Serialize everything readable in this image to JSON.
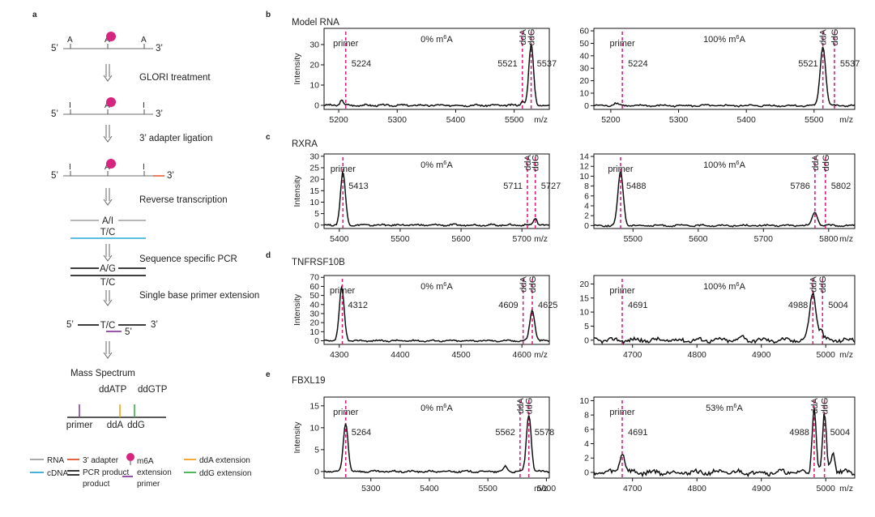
{
  "colors": {
    "accent": "#d6257e",
    "rna": "#9e9e9e",
    "cdna": "#2aa7d6",
    "adapter": "#e5532a",
    "primer_ext": "#8a3fa0",
    "dda": "#f0a21a",
    "ddg": "#3fae49",
    "trace": "#111111"
  },
  "workflow": {
    "label": "a",
    "three": "3’",
    "five": "5’",
    "base_A": "A",
    "base_I": "I",
    "steps": [
      "GLORI treatment",
      "3’ adapter ligation",
      "Reverse transcription",
      "Sequence specific PCR",
      "Single base primer extension",
      "Mass Spectrum"
    ],
    "duplex_rt": {
      "top": "A/I",
      "bottom": "T/C"
    },
    "duplex_pcr": {
      "top": "A/G",
      "bottom": "T/C"
    },
    "ext": {
      "template": "T/C",
      "five": "5’"
    },
    "ms_top_labels": [
      "ddATP",
      "ddGTP"
    ],
    "ms_bottom_labels": [
      "primer",
      "ddA",
      "ddG"
    ]
  },
  "legend": [
    {
      "name": "rna",
      "label": "RNA"
    },
    {
      "name": "cdna",
      "label": "cDNA"
    },
    {
      "name": "adapter",
      "label": "3’ adapter"
    },
    {
      "name": "pcr",
      "label": "PCR product",
      "label2": "product"
    },
    {
      "name": "m6a",
      "label": "m6A"
    },
    {
      "name": "primer",
      "label": "extension",
      "label2": "primer"
    },
    {
      "name": "dda",
      "label": "ddA extension"
    },
    {
      "name": "ddg",
      "label": "ddG extension"
    }
  ],
  "rows": [
    {
      "letter": "b",
      "gene": "Model RNA",
      "left_ylabel": "Intensity",
      "xlabel": "m/z"
    },
    {
      "letter": "c",
      "gene": "RXRA",
      "left_ylabel": "Intensity",
      "xlabel": "m/z"
    },
    {
      "letter": "d",
      "gene": "TNFRSF10B",
      "left_ylabel": "Intensity",
      "xlabel": "m/z"
    },
    {
      "letter": "e",
      "gene": "FBXL19",
      "left_ylabel": "Intensity",
      "xlabel": "m/z"
    }
  ],
  "chart_data": [
    {
      "type": "line",
      "id": "b0",
      "title": "0% m6A",
      "title_parts": [
        "0% m",
        "6",
        "A"
      ],
      "xlim": [
        5175,
        5560
      ],
      "xticks": [
        5200,
        5300,
        5400,
        5500
      ],
      "ylim": [
        -2,
        38
      ],
      "yticks": [
        0,
        10,
        20,
        30
      ],
      "peak_labels": {
        "primer": "primer",
        "ddA": "ddA",
        "ddG": "ddG"
      },
      "markers": [
        {
          "x": 5212,
          "role": "primer",
          "mass": "5224"
        },
        {
          "x": 5514,
          "role": "ddA",
          "mass": "5521"
        },
        {
          "x": 5529,
          "role": "ddG",
          "mass": "5537"
        }
      ],
      "peaks": [
        {
          "x": 5205,
          "h": 2.5,
          "w": 3
        },
        {
          "x": 5529,
          "h": 30,
          "w": 4
        },
        {
          "x": 5514,
          "h": 2,
          "w": 3
        }
      ]
    },
    {
      "type": "line",
      "id": "b1",
      "title": "100% m6A",
      "title_parts": [
        "100% m",
        "6",
        "A"
      ],
      "xlim": [
        5175,
        5560
      ],
      "xticks": [
        5200,
        5300,
        5400,
        5500
      ],
      "ylim": [
        -3,
        62
      ],
      "yticks": [
        0,
        10,
        20,
        30,
        40,
        50,
        60
      ],
      "peak_labels": {
        "primer": "primer",
        "ddA": "ddA",
        "ddG": "ddG"
      },
      "markers": [
        {
          "x": 5217,
          "role": "primer",
          "mass": "5224"
        },
        {
          "x": 5513,
          "role": "ddA",
          "mass": "5521"
        },
        {
          "x": 5530,
          "role": "ddG",
          "mass": "5537"
        }
      ],
      "peaks": [
        {
          "x": 5207,
          "h": 2,
          "w": 4
        },
        {
          "x": 5513,
          "h": 48,
          "w": 4
        }
      ]
    },
    {
      "type": "line",
      "id": "c0",
      "title": "0% m6A",
      "title_parts": [
        "0% m",
        "6",
        "A"
      ],
      "xlim": [
        5375,
        5745
      ],
      "xticks": [
        5400,
        5500,
        5600,
        5700
      ],
      "ylim": [
        -1.5,
        31
      ],
      "yticks": [
        0,
        5,
        10,
        15,
        20,
        25,
        30
      ],
      "peak_labels": {
        "primer": "primer",
        "ddA": "ddA",
        "ddG": "ddG"
      },
      "markers": [
        {
          "x": 5406,
          "role": "primer",
          "mass": "5413"
        },
        {
          "x": 5709,
          "role": "ddA",
          "mass": "5711"
        },
        {
          "x": 5722,
          "role": "ddG",
          "mass": "5727"
        }
      ],
      "peaks": [
        {
          "x": 5406,
          "h": 23,
          "w": 4
        },
        {
          "x": 5722,
          "h": 3,
          "w": 3
        }
      ]
    },
    {
      "type": "line",
      "id": "c1",
      "title": "100% m6A",
      "title_parts": [
        "100% m",
        "6",
        "A"
      ],
      "xlim": [
        5440,
        5840
      ],
      "xticks": [
        5500,
        5600,
        5700,
        5800
      ],
      "ylim": [
        -0.6,
        14.5
      ],
      "yticks": [
        0,
        2,
        4,
        6,
        8,
        10,
        12,
        14
      ],
      "peak_labels": {
        "primer": "primer",
        "ddA": "ddA",
        "ddG": "ddG"
      },
      "markers": [
        {
          "x": 5481,
          "role": "primer",
          "mass": "5488"
        },
        {
          "x": 5779,
          "role": "ddA",
          "mass": "5786"
        },
        {
          "x": 5795,
          "role": "ddG",
          "mass": "5802"
        }
      ],
      "peaks": [
        {
          "x": 5481,
          "h": 11,
          "w": 4
        },
        {
          "x": 5779,
          "h": 2.7,
          "w": 4
        }
      ]
    },
    {
      "type": "line",
      "id": "d0",
      "title": "0% m6A",
      "title_parts": [
        "0% m",
        "6",
        "A"
      ],
      "xlim": [
        4275,
        4645
      ],
      "xticks": [
        4300,
        4400,
        4500,
        4600
      ],
      "ylim": [
        -4,
        72
      ],
      "yticks": [
        0,
        10,
        20,
        30,
        40,
        50,
        60,
        70
      ],
      "peak_labels": {
        "primer": "primer",
        "ddA": "ddA",
        "ddG": "ddG"
      },
      "markers": [
        {
          "x": 4305,
          "role": "primer",
          "mass": "4312"
        },
        {
          "x": 4602,
          "role": "ddA",
          "mass": "4609"
        },
        {
          "x": 4617,
          "role": "ddG",
          "mass": "4625"
        }
      ],
      "peaks": [
        {
          "x": 4304,
          "h": 58,
          "w": 4
        },
        {
          "x": 4617,
          "h": 34,
          "w": 4
        }
      ]
    },
    {
      "type": "line",
      "id": "d1",
      "title": "100% m6A",
      "title_parts": [
        "100% m",
        "6",
        "A"
      ],
      "xlim": [
        4640,
        5045
      ],
      "xticks": [
        4700,
        4800,
        4900,
        5000
      ],
      "ylim": [
        -1.5,
        23
      ],
      "yticks": [
        0,
        5,
        10,
        15,
        20
      ],
      "peak_labels": {
        "primer": "primer",
        "ddA": "ddA",
        "ddG": "ddG"
      },
      "markers": [
        {
          "x": 4684,
          "role": "primer",
          "mass": "4691"
        },
        {
          "x": 4980,
          "role": "ddA",
          "mass": "4988"
        },
        {
          "x": 4995,
          "role": "ddG",
          "mass": "5004"
        }
      ],
      "peaks": [
        {
          "x": 4980,
          "h": 17,
          "w": 5
        },
        {
          "x": 4870,
          "h": 1.5,
          "w": 3
        },
        {
          "x": 4993,
          "h": 3,
          "w": 3
        }
      ]
    },
    {
      "type": "line",
      "id": "e0",
      "title": "0% m6A",
      "title_parts": [
        "0% m",
        "6",
        "A"
      ],
      "xlim": [
        5220,
        5605
      ],
      "xticks": [
        5300,
        5400,
        5500,
        5600
      ],
      "ylim": [
        -1.5,
        17
      ],
      "yticks": [
        0,
        5,
        10,
        15
      ],
      "peak_labels": {
        "primer": "primer",
        "ddA": "ddA",
        "ddG": "ddG"
      },
      "markers": [
        {
          "x": 5257,
          "role": "primer",
          "mass": "5264"
        },
        {
          "x": 5555,
          "role": "ddA",
          "mass": "5562"
        },
        {
          "x": 5570,
          "role": "ddG",
          "mass": "5578"
        }
      ],
      "peaks": [
        {
          "x": 5257,
          "h": 11,
          "w": 4
        },
        {
          "x": 5570,
          "h": 13,
          "w": 4
        },
        {
          "x": 5530,
          "h": 1.2,
          "w": 3
        }
      ]
    },
    {
      "type": "line",
      "id": "e1",
      "title": "53% m6A",
      "title_parts": [
        "53% m",
        "6",
        "A"
      ],
      "xlim": [
        4640,
        5045
      ],
      "xticks": [
        4700,
        4800,
        4900,
        5000
      ],
      "ylim": [
        -0.8,
        10.5
      ],
      "yticks": [
        0,
        2,
        4,
        6,
        8,
        10
      ],
      "peak_labels": {
        "primer": "primer",
        "ddA": "ddA",
        "ddG": "ddG"
      },
      "markers": [
        {
          "x": 4684,
          "role": "primer",
          "mass": "4691"
        },
        {
          "x": 4982,
          "role": "ddA",
          "mass": "4988"
        },
        {
          "x": 4998,
          "role": "ddG",
          "mass": "5004"
        }
      ],
      "peaks": [
        {
          "x": 4684,
          "h": 2.8,
          "w": 4
        },
        {
          "x": 4982,
          "h": 9,
          "w": 3
        },
        {
          "x": 4998,
          "h": 8,
          "w": 3
        },
        {
          "x": 5011,
          "h": 3,
          "w": 3
        }
      ]
    }
  ]
}
